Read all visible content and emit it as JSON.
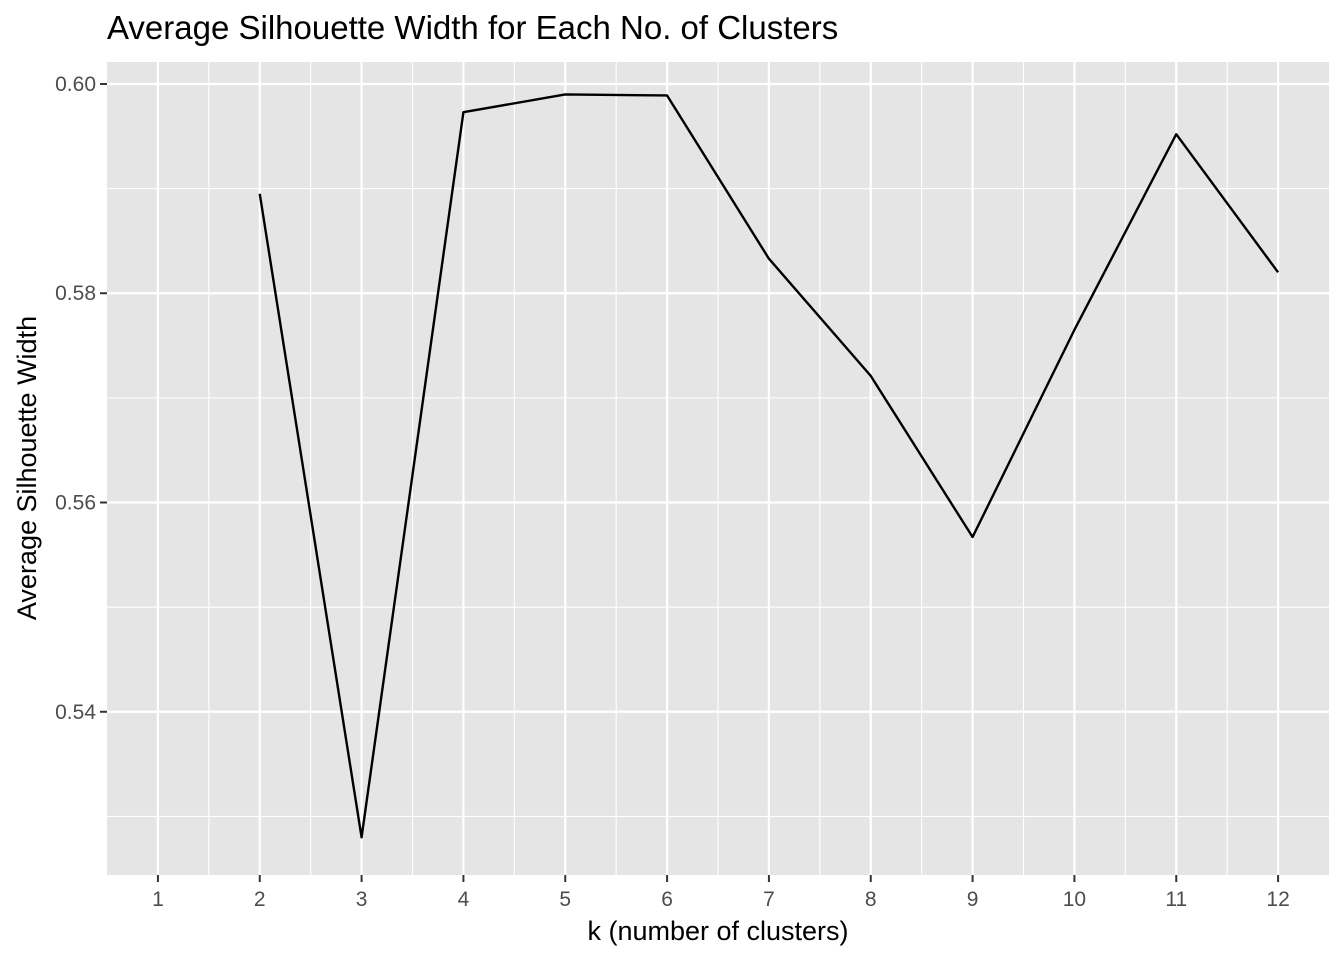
{
  "chart_data": {
    "type": "line",
    "title": "Average Silhouette Width for Each No. of Clusters",
    "xlabel": "k (number of clusters)",
    "ylabel": "Average Silhouette Width",
    "x": [
      2,
      3,
      4,
      5,
      6,
      7,
      8,
      9,
      10,
      11,
      12
    ],
    "values": [
      0.5895,
      0.528,
      0.5973,
      0.599,
      0.5989,
      0.5833,
      0.5721,
      0.5567,
      0.5765,
      0.5952,
      0.582
    ],
    "xlim": [
      0.5,
      12.5
    ],
    "ylim": [
      0.5244,
      0.6021
    ],
    "x_ticks": [
      "1",
      "2",
      "3",
      "4",
      "5",
      "6",
      "7",
      "8",
      "9",
      "10",
      "11",
      "12"
    ],
    "y_ticks": [
      "0.54",
      "0.56",
      "0.58",
      "0.60"
    ],
    "y_tick_values": [
      0.54,
      0.56,
      0.58,
      0.6
    ],
    "grid": true,
    "legend": "none",
    "colors": {
      "panel_background": "#e5e5e5",
      "grid_line": "#ffffff",
      "line": "#000000",
      "tick_label": "#4d4d4d",
      "tick_mark": "#333333"
    }
  }
}
